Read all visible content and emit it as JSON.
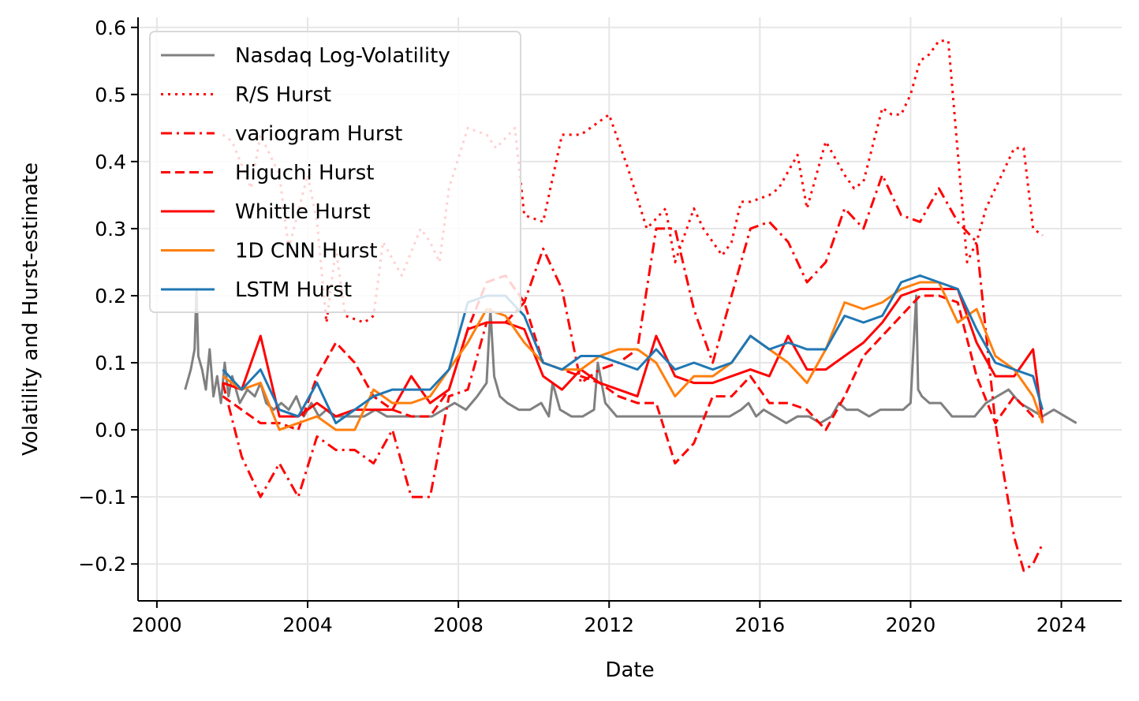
{
  "chart_data": {
    "type": "line",
    "xlabel": "Date",
    "ylabel": "Volatility and Hurst-estimate",
    "xlim": [
      1999.5,
      2025.6
    ],
    "ylim": [
      -0.255,
      0.615
    ],
    "x_ticks": [
      2000,
      2004,
      2008,
      2012,
      2016,
      2020,
      2024
    ],
    "x_tick_labels": [
      "2000",
      "2004",
      "2008",
      "2012",
      "2016",
      "2020",
      "2024"
    ],
    "y_ticks": [
      -0.2,
      -0.1,
      0.0,
      0.1,
      0.2,
      0.3,
      0.4,
      0.5,
      0.6
    ],
    "y_tick_labels": [
      "−0.2",
      "−0.1",
      "0.0",
      "0.1",
      "0.2",
      "0.3",
      "0.4",
      "0.5",
      "0.6"
    ],
    "grid": true,
    "legend_position": "upper-left",
    "series": [
      {
        "name": "Nasdaq Log-Volatility",
        "color": "#808080",
        "style": "solid",
        "x": [
          2000.75,
          2000.9,
          2001.0,
          2001.05,
          2001.1,
          2001.2,
          2001.3,
          2001.4,
          2001.5,
          2001.6,
          2001.7,
          2001.8,
          2001.9,
          2002.0,
          2002.2,
          2002.4,
          2002.6,
          2002.75,
          2002.9,
          2003.1,
          2003.3,
          2003.5,
          2003.7,
          2003.9,
          2004.1,
          2004.3,
          2004.5,
          2004.7,
          2004.9,
          2005.2,
          2005.5,
          2005.8,
          2006.1,
          2006.4,
          2006.7,
          2007.0,
          2007.3,
          2007.6,
          2007.9,
          2008.2,
          2008.5,
          2008.75,
          2008.85,
          2008.95,
          2009.1,
          2009.3,
          2009.6,
          2009.9,
          2010.2,
          2010.4,
          2010.5,
          2010.7,
          2011.0,
          2011.3,
          2011.6,
          2011.7,
          2011.9,
          2012.2,
          2012.5,
          2012.8,
          2013.1,
          2013.4,
          2013.7,
          2014.0,
          2014.3,
          2014.6,
          2014.9,
          2015.2,
          2015.5,
          2015.7,
          2015.9,
          2016.1,
          2016.4,
          2016.7,
          2017.0,
          2017.3,
          2017.6,
          2017.9,
          2018.1,
          2018.3,
          2018.6,
          2018.9,
          2019.2,
          2019.5,
          2019.8,
          2020.0,
          2020.15,
          2020.2,
          2020.3,
          2020.5,
          2020.8,
          2021.1,
          2021.4,
          2021.7,
          2022.0,
          2022.3,
          2022.6,
          2022.9,
          2023.2,
          2023.5,
          2023.8,
          2024.1,
          2024.4
        ],
        "y": [
          0.06,
          0.09,
          0.12,
          0.21,
          0.11,
          0.09,
          0.06,
          0.12,
          0.05,
          0.08,
          0.04,
          0.1,
          0.05,
          0.08,
          0.04,
          0.06,
          0.05,
          0.07,
          0.04,
          0.03,
          0.04,
          0.03,
          0.05,
          0.02,
          0.04,
          0.02,
          0.03,
          0.02,
          0.02,
          0.02,
          0.02,
          0.03,
          0.02,
          0.02,
          0.02,
          0.02,
          0.02,
          0.03,
          0.04,
          0.03,
          0.05,
          0.07,
          0.18,
          0.08,
          0.05,
          0.04,
          0.03,
          0.03,
          0.04,
          0.02,
          0.07,
          0.03,
          0.02,
          0.02,
          0.03,
          0.1,
          0.04,
          0.02,
          0.02,
          0.02,
          0.02,
          0.02,
          0.02,
          0.02,
          0.02,
          0.02,
          0.02,
          0.02,
          0.03,
          0.04,
          0.02,
          0.03,
          0.02,
          0.01,
          0.02,
          0.02,
          0.01,
          0.02,
          0.04,
          0.03,
          0.03,
          0.02,
          0.03,
          0.03,
          0.03,
          0.04,
          0.2,
          0.06,
          0.05,
          0.04,
          0.04,
          0.02,
          0.02,
          0.02,
          0.04,
          0.05,
          0.06,
          0.04,
          0.03,
          0.02,
          0.03,
          0.02,
          0.01
        ]
      },
      {
        "name": "R/S Hurst",
        "color": "#ff0000",
        "style": "dotted",
        "x": [
          2001.75,
          2002.0,
          2002.5,
          2002.75,
          2003.25,
          2003.5,
          2004.0,
          2004.25,
          2004.5,
          2004.75,
          2005.0,
          2005.5,
          2005.75,
          2006.0,
          2006.5,
          2007.0,
          2007.25,
          2007.5,
          2007.75,
          2008.25,
          2008.75,
          2009.0,
          2009.5,
          2009.75,
          2010.25,
          2010.75,
          2011.25,
          2011.75,
          2012.0,
          2012.5,
          2013.0,
          2013.5,
          2013.75,
          2014.25,
          2014.5,
          2015.0,
          2015.25,
          2015.5,
          2015.75,
          2016.25,
          2016.5,
          2017.0,
          2017.25,
          2017.75,
          2018.25,
          2018.5,
          2018.75,
          2019.25,
          2019.5,
          2019.75,
          2020.0,
          2020.25,
          2020.5,
          2020.75,
          2021.0,
          2021.5,
          2021.75,
          2022.0,
          2022.25,
          2022.5,
          2022.75,
          2023.0,
          2023.25,
          2023.5
        ],
        "y": [
          0.44,
          0.43,
          0.36,
          0.44,
          0.38,
          0.27,
          0.38,
          0.31,
          0.16,
          0.27,
          0.17,
          0.16,
          0.17,
          0.28,
          0.23,
          0.3,
          0.28,
          0.25,
          0.36,
          0.45,
          0.44,
          0.42,
          0.45,
          0.32,
          0.31,
          0.44,
          0.44,
          0.46,
          0.47,
          0.39,
          0.3,
          0.33,
          0.25,
          0.33,
          0.3,
          0.26,
          0.28,
          0.34,
          0.34,
          0.35,
          0.36,
          0.41,
          0.33,
          0.43,
          0.38,
          0.36,
          0.37,
          0.48,
          0.47,
          0.47,
          0.5,
          0.55,
          0.56,
          0.58,
          0.58,
          0.25,
          0.28,
          0.33,
          0.36,
          0.39,
          0.42,
          0.42,
          0.3,
          0.29
        ]
      },
      {
        "name": "variogram Hurst",
        "color": "#ff0000",
        "style": "dashdot",
        "x": [
          2001.75,
          2002.25,
          2002.75,
          2003.25,
          2003.75,
          2004.25,
          2004.75,
          2005.25,
          2005.75,
          2006.25,
          2006.75,
          2007.25,
          2007.75,
          2008.25,
          2008.75,
          2009.25,
          2009.75,
          2010.25,
          2010.75,
          2011.25,
          2011.75,
          2012.25,
          2012.75,
          2013.25,
          2013.75,
          2014.25,
          2014.75,
          2015.25,
          2015.75,
          2016.25,
          2016.75,
          2017.25,
          2017.75,
          2018.25,
          2018.75,
          2019.25,
          2019.75,
          2020.25,
          2020.75,
          2021.25,
          2021.75,
          2022.25,
          2022.75,
          2023.0,
          2023.25,
          2023.5
        ],
        "y": [
          0.07,
          -0.04,
          -0.1,
          -0.05,
          -0.1,
          -0.01,
          -0.03,
          -0.03,
          -0.05,
          0.0,
          -0.1,
          -0.1,
          0.05,
          0.06,
          0.16,
          0.16,
          0.19,
          0.27,
          0.21,
          0.07,
          0.09,
          0.1,
          0.12,
          0.3,
          0.3,
          0.18,
          0.1,
          0.2,
          0.3,
          0.31,
          0.28,
          0.22,
          0.25,
          0.33,
          0.3,
          0.38,
          0.32,
          0.31,
          0.36,
          0.31,
          0.28,
          0.01,
          -0.16,
          -0.21,
          -0.2,
          -0.17
        ]
      },
      {
        "name": "Higuchi Hurst",
        "color": "#ff0000",
        "style": "dashed",
        "x": [
          2001.75,
          2002.25,
          2002.75,
          2003.25,
          2003.75,
          2004.25,
          2004.75,
          2005.25,
          2005.75,
          2006.25,
          2006.75,
          2007.25,
          2007.75,
          2008.25,
          2008.75,
          2009.25,
          2009.75,
          2010.25,
          2010.75,
          2011.25,
          2011.75,
          2012.25,
          2012.75,
          2013.25,
          2013.75,
          2014.25,
          2014.75,
          2015.25,
          2015.75,
          2016.25,
          2016.75,
          2017.25,
          2017.75,
          2018.25,
          2018.75,
          2019.25,
          2019.75,
          2020.25,
          2020.75,
          2021.25,
          2021.75,
          2022.25,
          2022.75,
          2023.25,
          2023.5
        ],
        "y": [
          0.05,
          0.03,
          0.01,
          0.01,
          0.0,
          0.08,
          0.13,
          0.1,
          0.05,
          0.03,
          0.02,
          0.02,
          0.06,
          0.15,
          0.22,
          0.23,
          0.19,
          0.1,
          0.09,
          0.08,
          0.07,
          0.05,
          0.04,
          0.04,
          -0.05,
          -0.02,
          0.05,
          0.05,
          0.08,
          0.04,
          0.04,
          0.03,
          0.0,
          0.05,
          0.11,
          0.14,
          0.17,
          0.2,
          0.2,
          0.19,
          0.08,
          0.01,
          0.05,
          0.02,
          0.02
        ]
      },
      {
        "name": "Whittle Hurst",
        "color": "#ff0000",
        "style": "solid",
        "x": [
          2001.75,
          2002.25,
          2002.75,
          2003.25,
          2003.75,
          2004.25,
          2004.75,
          2005.25,
          2005.75,
          2006.25,
          2006.75,
          2007.25,
          2007.75,
          2008.25,
          2008.75,
          2009.25,
          2009.75,
          2010.25,
          2010.75,
          2011.25,
          2011.75,
          2012.25,
          2012.75,
          2013.25,
          2013.75,
          2014.25,
          2014.75,
          2015.25,
          2015.75,
          2016.25,
          2016.75,
          2017.25,
          2017.75,
          2018.25,
          2018.75,
          2019.25,
          2019.75,
          2020.25,
          2020.75,
          2021.25,
          2021.75,
          2022.25,
          2022.75,
          2023.25,
          2023.5
        ],
        "y": [
          0.07,
          0.06,
          0.14,
          0.02,
          0.02,
          0.04,
          0.02,
          0.03,
          0.03,
          0.03,
          0.08,
          0.04,
          0.06,
          0.15,
          0.16,
          0.16,
          0.15,
          0.08,
          0.06,
          0.09,
          0.07,
          0.06,
          0.05,
          0.14,
          0.08,
          0.07,
          0.07,
          0.08,
          0.09,
          0.08,
          0.14,
          0.09,
          0.09,
          0.11,
          0.13,
          0.16,
          0.2,
          0.21,
          0.21,
          0.21,
          0.13,
          0.08,
          0.08,
          0.12,
          0.01
        ]
      },
      {
        "name": "1D CNN Hurst",
        "color": "#ff7f0e",
        "style": "solid",
        "x": [
          2001.75,
          2002.25,
          2002.75,
          2003.25,
          2003.75,
          2004.25,
          2004.75,
          2005.25,
          2005.75,
          2006.25,
          2006.75,
          2007.25,
          2007.75,
          2008.25,
          2008.75,
          2009.25,
          2009.75,
          2010.25,
          2010.75,
          2011.25,
          2011.75,
          2012.25,
          2012.75,
          2013.25,
          2013.75,
          2014.25,
          2014.75,
          2015.25,
          2015.75,
          2016.25,
          2016.75,
          2017.25,
          2017.75,
          2018.25,
          2018.75,
          2019.25,
          2019.75,
          2020.25,
          2020.75,
          2021.25,
          2021.75,
          2022.25,
          2022.75,
          2023.25,
          2023.5
        ],
        "y": [
          0.08,
          0.06,
          0.07,
          0.0,
          0.01,
          0.02,
          0.0,
          0.0,
          0.06,
          0.04,
          0.04,
          0.05,
          0.09,
          0.13,
          0.18,
          0.17,
          0.13,
          0.1,
          0.09,
          0.09,
          0.11,
          0.12,
          0.12,
          0.1,
          0.05,
          0.08,
          0.08,
          0.1,
          0.14,
          0.12,
          0.1,
          0.07,
          0.12,
          0.19,
          0.18,
          0.19,
          0.21,
          0.22,
          0.22,
          0.16,
          0.18,
          0.11,
          0.09,
          0.05,
          0.01
        ]
      },
      {
        "name": "LSTM Hurst",
        "color": "#1f77b4",
        "style": "solid",
        "x": [
          2001.75,
          2002.25,
          2002.75,
          2003.25,
          2003.75,
          2004.25,
          2004.75,
          2005.25,
          2005.75,
          2006.25,
          2006.75,
          2007.25,
          2007.75,
          2008.25,
          2008.75,
          2009.25,
          2009.75,
          2010.25,
          2010.75,
          2011.25,
          2011.75,
          2012.25,
          2012.75,
          2013.25,
          2013.75,
          2014.25,
          2014.75,
          2015.25,
          2015.75,
          2016.25,
          2016.75,
          2017.25,
          2017.75,
          2018.25,
          2018.75,
          2019.25,
          2019.75,
          2020.25,
          2020.75,
          2021.25,
          2021.75,
          2022.25,
          2022.75,
          2023.25,
          2023.5
        ],
        "y": [
          0.09,
          0.06,
          0.09,
          0.03,
          0.02,
          0.07,
          0.01,
          0.03,
          0.05,
          0.06,
          0.06,
          0.06,
          0.09,
          0.19,
          0.2,
          0.2,
          0.17,
          0.1,
          0.09,
          0.11,
          0.11,
          0.1,
          0.09,
          0.12,
          0.09,
          0.1,
          0.09,
          0.1,
          0.14,
          0.12,
          0.13,
          0.12,
          0.12,
          0.17,
          0.16,
          0.17,
          0.22,
          0.23,
          0.22,
          0.21,
          0.15,
          0.1,
          0.09,
          0.08,
          0.03
        ]
      }
    ]
  }
}
